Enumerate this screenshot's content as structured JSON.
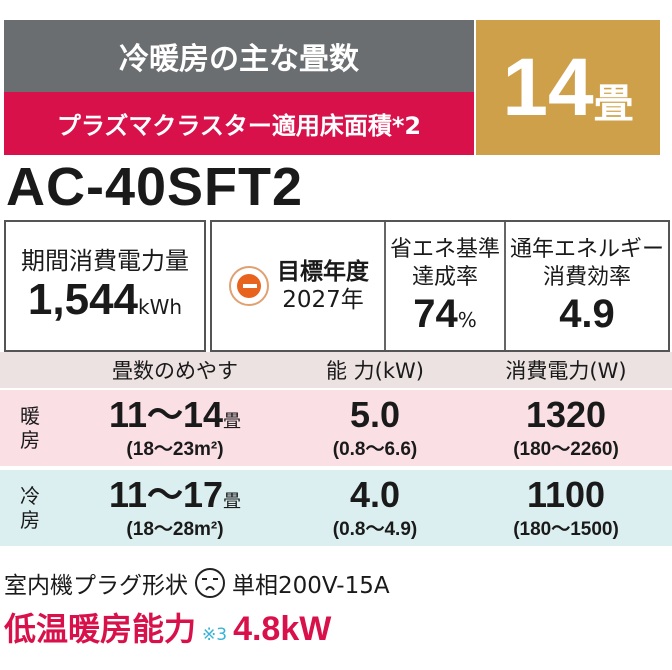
{
  "header": {
    "title": "冷暖房の主な畳数",
    "subtitle": "プラズマクラスター適用床面積*2",
    "tatami_number": "14",
    "tatami_unit": "畳"
  },
  "model": "AC-40SFT2",
  "specs": {
    "annual_power_label": "期間消費電力量",
    "annual_power_value": "1,544",
    "annual_power_unit": "kWh",
    "target_year_label": "目標年度",
    "target_year_value": "2027年",
    "target_icon": "e-mark-icon",
    "achievement_label_1": "省エネ基準",
    "achievement_label_2": "達成率",
    "achievement_value": "74",
    "achievement_unit": "%",
    "apf_label_1": "通年エネルギー",
    "apf_label_2": "消費効率",
    "apf_value": "4.9"
  },
  "table": {
    "headers": [
      "畳数のめやす",
      "能 力(kW)",
      "消費電力(W)"
    ],
    "rows": [
      {
        "mode": "暖房",
        "mode_top": "暖",
        "mode_bottom": "房",
        "tatami": "11〜14",
        "tatami_unit": "畳",
        "area": "(18〜23m²)",
        "capacity": "5.0",
        "capacity_range": "(0.8〜6.6)",
        "power": "1320",
        "power_range": "(180〜2260)"
      },
      {
        "mode": "冷房",
        "mode_top": "冷",
        "mode_bottom": "房",
        "tatami": "11〜17",
        "tatami_unit": "畳",
        "area": "(18〜28m²)",
        "capacity": "4.0",
        "capacity_range": "(0.8〜4.9)",
        "power": "1100",
        "power_range": "(180〜1500)"
      }
    ]
  },
  "footer": {
    "plug_label": "室内機プラグ形状",
    "plug_icon": "plug-shape-icon",
    "plug_value": "単相200V-15A",
    "low_temp_label": "低温暖房能力",
    "low_temp_note": "※3",
    "low_temp_value": "4.8kW"
  },
  "colors": {
    "gray": "#6b6e70",
    "red": "#d8114b",
    "gold": "#cfa04a",
    "heat_row": "#fadfe5",
    "cool_row": "#dceff0",
    "note": "#35b4d8"
  }
}
